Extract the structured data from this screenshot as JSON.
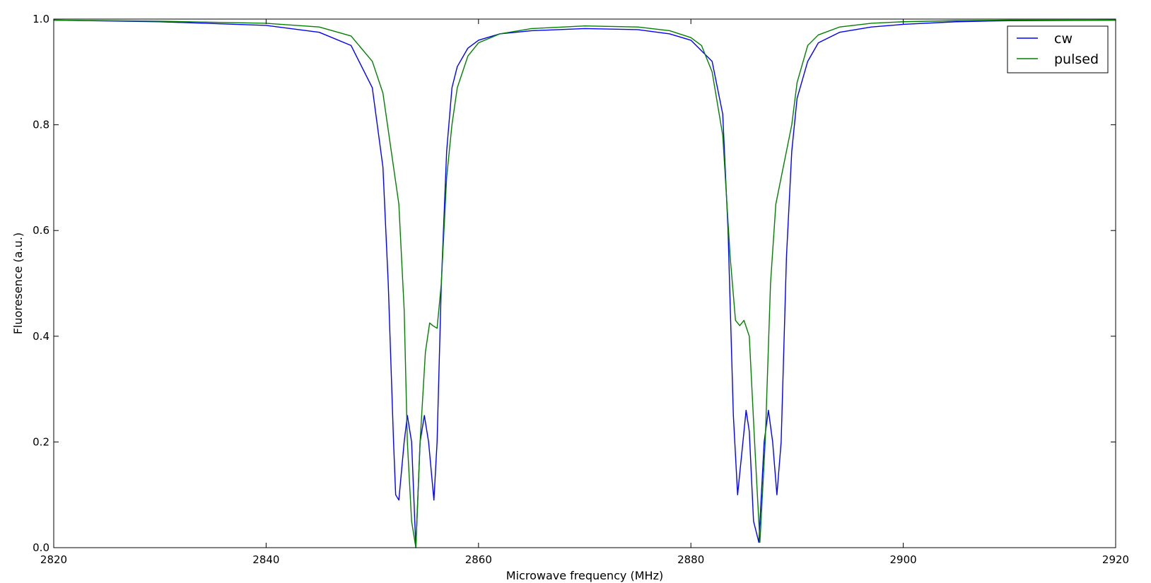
{
  "chart_data": {
    "type": "line",
    "xlabel": "Microwave frequency (MHz)",
    "ylabel": "Fluoresence (a.u.)",
    "xlim": [
      2820,
      2920
    ],
    "ylim": [
      0.0,
      1.0
    ],
    "xticks": [
      2820,
      2840,
      2860,
      2880,
      2900,
      2920
    ],
    "yticks": [
      0.0,
      0.2,
      0.4,
      0.6,
      0.8,
      1.0
    ],
    "xtick_labels": [
      "2820",
      "2840",
      "2860",
      "2880",
      "2900",
      "2920"
    ],
    "ytick_labels": [
      "0.0",
      "0.2",
      "0.4",
      "0.6",
      "0.8",
      "1.0"
    ],
    "grid": false,
    "legend_position": "top-right",
    "series": [
      {
        "name": "cw",
        "color": "#0000ff",
        "x": [
          2820,
          2830,
          2840,
          2845,
          2848,
          2850,
          2851,
          2851.5,
          2852,
          2852.2,
          2852.5,
          2853,
          2853.3,
          2853.7,
          2854.1,
          2854.5,
          2854.9,
          2855.3,
          2855.8,
          2856.1,
          2856.5,
          2857,
          2857.5,
          2858,
          2859,
          2860,
          2862,
          2865,
          2870,
          2875,
          2878,
          2880,
          2882,
          2883,
          2883.5,
          2884,
          2884.4,
          2884.8,
          2885.2,
          2885.5,
          2885.9,
          2886.4,
          2886.9,
          2887.3,
          2887.7,
          2888.1,
          2888.5,
          2889,
          2889.5,
          2890,
          2891,
          2892,
          2894,
          2897,
          2900,
          2905,
          2910,
          2920
        ],
        "y": [
          0.998,
          0.995,
          0.988,
          0.975,
          0.95,
          0.87,
          0.72,
          0.5,
          0.2,
          0.1,
          0.09,
          0.2,
          0.25,
          0.2,
          0.0,
          0.2,
          0.25,
          0.2,
          0.09,
          0.2,
          0.5,
          0.75,
          0.87,
          0.91,
          0.945,
          0.96,
          0.972,
          0.978,
          0.982,
          0.98,
          0.972,
          0.96,
          0.92,
          0.82,
          0.6,
          0.25,
          0.1,
          0.18,
          0.26,
          0.22,
          0.05,
          0.01,
          0.2,
          0.26,
          0.2,
          0.1,
          0.2,
          0.55,
          0.75,
          0.85,
          0.92,
          0.955,
          0.975,
          0.985,
          0.99,
          0.995,
          0.997,
          0.998
        ]
      },
      {
        "name": "pulsed",
        "color": "#008000",
        "x": [
          2820,
          2830,
          2840,
          2845,
          2848,
          2850,
          2851,
          2852,
          2852.5,
          2853,
          2853.3,
          2853.7,
          2854.1,
          2854.5,
          2855,
          2855.4,
          2855.7,
          2856.1,
          2856.5,
          2857,
          2857.5,
          2858,
          2859,
          2860,
          2862,
          2865,
          2870,
          2875,
          2878,
          2880,
          2881,
          2882,
          2883,
          2883.7,
          2884.2,
          2884.6,
          2885,
          2885.5,
          2886,
          2886.5,
          2887,
          2887.5,
          2888,
          2889,
          2889.5,
          2890,
          2891,
          2892,
          2894,
          2897,
          2900,
          2905,
          2910,
          2920
        ],
        "y": [
          0.998,
          0.996,
          0.992,
          0.985,
          0.968,
          0.92,
          0.86,
          0.72,
          0.65,
          0.45,
          0.2,
          0.05,
          0.0,
          0.2,
          0.37,
          0.425,
          0.42,
          0.415,
          0.5,
          0.7,
          0.8,
          0.87,
          0.93,
          0.955,
          0.972,
          0.982,
          0.987,
          0.985,
          0.978,
          0.965,
          0.95,
          0.9,
          0.78,
          0.55,
          0.43,
          0.42,
          0.43,
          0.4,
          0.2,
          0.01,
          0.2,
          0.5,
          0.65,
          0.75,
          0.8,
          0.88,
          0.95,
          0.97,
          0.985,
          0.992,
          0.995,
          0.997,
          0.998,
          0.998
        ]
      }
    ]
  }
}
